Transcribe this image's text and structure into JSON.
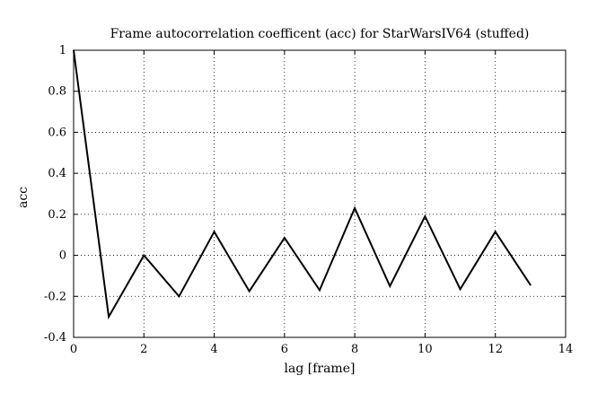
{
  "chart_data": {
    "type": "line",
    "title": "Frame autocorrelation coefficent (acc) for StarWarsIV64 (stuffed)",
    "xlabel": "lag [frame]",
    "ylabel": "acc",
    "xlim": [
      0,
      14
    ],
    "ylim": [
      -0.4,
      1
    ],
    "xticks": [
      "0",
      "2",
      "4",
      "6",
      "8",
      "10",
      "12",
      "14"
    ],
    "yticks": [
      "-0.4",
      "-0.2",
      "0",
      "0.2",
      "0.4",
      "0.6",
      "0.8",
      "1"
    ],
    "grid": true,
    "grid_style": "dotted",
    "series": [
      {
        "color": "#000000",
        "x": [
          0,
          1,
          2,
          3,
          4,
          5,
          6,
          7,
          8,
          9,
          10,
          11,
          12,
          13
        ],
        "y": [
          1.0,
          -0.3,
          0.0,
          -0.2,
          0.115,
          -0.175,
          0.085,
          -0.17,
          0.23,
          -0.15,
          0.19,
          -0.165,
          0.115,
          -0.145
        ]
      }
    ]
  }
}
